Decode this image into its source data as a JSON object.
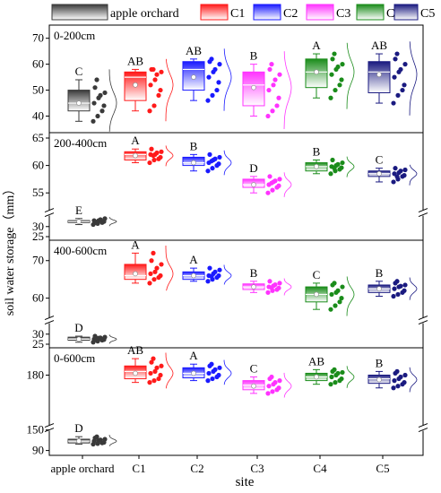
{
  "legend": [
    {
      "name": "apple orchard",
      "color": "#3a3a3a"
    },
    {
      "name": "C1",
      "color": "#ff1a1a"
    },
    {
      "name": "C2",
      "color": "#1a1aff"
    },
    {
      "name": "C3",
      "color": "#ff33ff"
    },
    {
      "name": "C4",
      "color": "#1a8c1a"
    },
    {
      "name": "C5",
      "color": "#1a1a80"
    }
  ],
  "xlabel": "site",
  "ylabel": "soil water storage（mm）",
  "categories": [
    "apple orchard",
    "C1",
    "C2",
    "C3",
    "C4",
    "C5"
  ],
  "chart_data": [
    {
      "type": "box",
      "title": "0-200cm",
      "yticks": [
        40,
        50,
        60,
        70
      ],
      "ylim": [
        35,
        73
      ],
      "letters": [
        "C",
        "AB",
        "AB",
        "B",
        "A",
        "AB"
      ],
      "boxes": [
        {
          "min": 38,
          "q1": 42,
          "median": 45,
          "q3": 50,
          "max": 54,
          "mean": 45,
          "points": [
            38,
            40,
            42,
            44,
            45,
            47,
            48,
            49,
            51,
            54
          ]
        },
        {
          "min": 42,
          "q1": 46,
          "median": 55,
          "q3": 57,
          "max": 58,
          "mean": 52,
          "points": [
            42,
            44,
            48,
            50,
            52,
            54,
            56,
            57,
            58,
            58
          ]
        },
        {
          "min": 46,
          "q1": 50,
          "median": 58,
          "q3": 61,
          "max": 62,
          "mean": 55,
          "points": [
            46,
            48,
            50,
            53,
            55,
            57,
            58,
            60,
            61,
            62
          ]
        },
        {
          "min": 40,
          "q1": 44,
          "median": 52,
          "q3": 57,
          "max": 60,
          "mean": 51,
          "points": [
            40,
            42,
            44,
            47,
            50,
            52,
            54,
            56,
            58,
            60
          ]
        },
        {
          "min": 47,
          "q1": 51,
          "median": 57,
          "q3": 62,
          "max": 64,
          "mean": 57,
          "points": [
            47,
            50,
            52,
            54,
            56,
            58,
            59,
            60,
            62,
            64
          ]
        },
        {
          "min": 45,
          "q1": 49,
          "median": 57,
          "q3": 61,
          "max": 64,
          "mean": 56,
          "points": [
            45,
            48,
            50,
            52,
            55,
            57,
            58,
            60,
            62,
            64
          ]
        }
      ]
    },
    {
      "type": "box",
      "title": "200-400cm",
      "yticks": [
        25,
        30,
        55,
        60,
        65
      ],
      "ylim": [
        25,
        65
      ],
      "axis_break": [
        35,
        52
      ],
      "letters": [
        "E",
        "A",
        "B",
        "D",
        "B",
        "C"
      ],
      "boxes": [
        {
          "min": 31,
          "q1": 32,
          "median": 32.5,
          "q3": 33,
          "max": 34,
          "mean": 32.5,
          "points": [
            31,
            31.5,
            32,
            32.5,
            33,
            33,
            33.5,
            34,
            32,
            31.8
          ]
        },
        {
          "min": 60.5,
          "q1": 61,
          "median": 62,
          "q3": 62.5,
          "max": 63,
          "mean": 61.8,
          "points": [
            60.5,
            61,
            61.2,
            61.5,
            62,
            62,
            62.3,
            62.5,
            63,
            61.8
          ]
        },
        {
          "min": 59,
          "q1": 60,
          "median": 60.5,
          "q3": 61.5,
          "max": 62,
          "mean": 60.5,
          "points": [
            59,
            59.5,
            60,
            60.3,
            60.5,
            61,
            61.2,
            61.5,
            62,
            60.8
          ]
        },
        {
          "min": 55,
          "q1": 56,
          "median": 56.5,
          "q3": 57.5,
          "max": 58,
          "mean": 56.5,
          "points": [
            55,
            55.5,
            56,
            56.3,
            56.5,
            57,
            57.2,
            57.5,
            58,
            56.8
          ]
        },
        {
          "min": 58.5,
          "q1": 59,
          "median": 59.8,
          "q3": 60.5,
          "max": 61,
          "mean": 59.8,
          "points": [
            58.5,
            59,
            59.3,
            59.6,
            59.8,
            60,
            60.2,
            60.5,
            61,
            59.5
          ]
        },
        {
          "min": 57,
          "q1": 58,
          "median": 58.5,
          "q3": 59,
          "max": 59.5,
          "mean": 58.5,
          "points": [
            57,
            57.5,
            58,
            58.2,
            58.5,
            58.7,
            59,
            59.2,
            59.5,
            58
          ]
        }
      ]
    },
    {
      "type": "box",
      "title": "400-600cm",
      "yticks": [
        25,
        30,
        60,
        70
      ],
      "ylim": [
        25,
        74
      ],
      "axis_break": [
        35,
        55
      ],
      "letters": [
        "D",
        "A",
        "A",
        "B",
        "C",
        "B"
      ],
      "boxes": [
        {
          "min": 26,
          "q1": 27,
          "median": 27.5,
          "q3": 28.5,
          "max": 29,
          "mean": 27.5,
          "points": [
            26,
            26.5,
            27,
            27.3,
            27.5,
            28,
            28.2,
            28.5,
            29,
            27.8
          ]
        },
        {
          "min": 64,
          "q1": 65,
          "median": 66,
          "q3": 69,
          "max": 72,
          "mean": 66.5,
          "points": [
            64,
            65,
            65.5,
            66,
            66.5,
            67,
            68,
            69,
            70,
            72
          ]
        },
        {
          "min": 64.5,
          "q1": 65,
          "median": 66,
          "q3": 67,
          "max": 68,
          "mean": 66,
          "points": [
            64.5,
            65,
            65.5,
            66,
            66,
            66.5,
            67,
            67.5,
            68,
            65.8
          ]
        },
        {
          "min": 61.5,
          "q1": 62.3,
          "median": 63,
          "q3": 63.8,
          "max": 64.5,
          "mean": 63,
          "points": [
            61.5,
            62,
            62.3,
            62.7,
            63,
            63.3,
            63.6,
            64,
            64.5,
            62.8
          ]
        },
        {
          "min": 57,
          "q1": 59,
          "median": 61,
          "q3": 63,
          "max": 64,
          "mean": 61,
          "points": [
            57,
            58,
            59,
            60,
            61,
            61.5,
            62,
            63,
            63.5,
            64
          ]
        },
        {
          "min": 60.5,
          "q1": 61.5,
          "median": 62.5,
          "q3": 63.5,
          "max": 64.5,
          "mean": 62.5,
          "points": [
            60.5,
            61,
            61.5,
            62,
            62.5,
            63,
            63.2,
            63.5,
            64,
            64.5
          ]
        }
      ]
    },
    {
      "type": "box",
      "title": "0-600cm",
      "yticks": [
        90,
        150,
        180
      ],
      "ylim": [
        88,
        192
      ],
      "axis_break": [
        120,
        153
      ],
      "letters": [
        "D",
        "AB",
        "A",
        "C",
        "AB",
        "B"
      ],
      "boxes": [
        {
          "min": 100,
          "q1": 102,
          "median": 105,
          "q3": 108,
          "max": 112,
          "mean": 105,
          "points": [
            100,
            101,
            102,
            103,
            105,
            106,
            107,
            108,
            110,
            112
          ]
        },
        {
          "min": 176,
          "q1": 178,
          "median": 182,
          "q3": 185,
          "max": 189,
          "mean": 181,
          "points": [
            176,
            177,
            178,
            180,
            181,
            182,
            184,
            185,
            187,
            189
          ]
        },
        {
          "min": 177,
          "q1": 178.5,
          "median": 181,
          "q3": 184,
          "max": 186,
          "mean": 181,
          "points": [
            177,
            178,
            179,
            180,
            181,
            182,
            183,
            184,
            185,
            186
          ]
        },
        {
          "min": 170,
          "q1": 172,
          "median": 174.5,
          "q3": 177,
          "max": 179,
          "mean": 174,
          "points": [
            170,
            171,
            172,
            173,
            174,
            175,
            176,
            177,
            178,
            179
          ]
        },
        {
          "min": 175,
          "q1": 177,
          "median": 179,
          "q3": 181,
          "max": 183,
          "mean": 179,
          "points": [
            175,
            176,
            177,
            178,
            179,
            180,
            181,
            181.5,
            182,
            183
          ]
        },
        {
          "min": 173,
          "q1": 175.5,
          "median": 178,
          "q3": 180,
          "max": 182,
          "mean": 177.5,
          "points": [
            173,
            174,
            175,
            176,
            177,
            178,
            179,
            180,
            181,
            182
          ]
        }
      ]
    }
  ]
}
